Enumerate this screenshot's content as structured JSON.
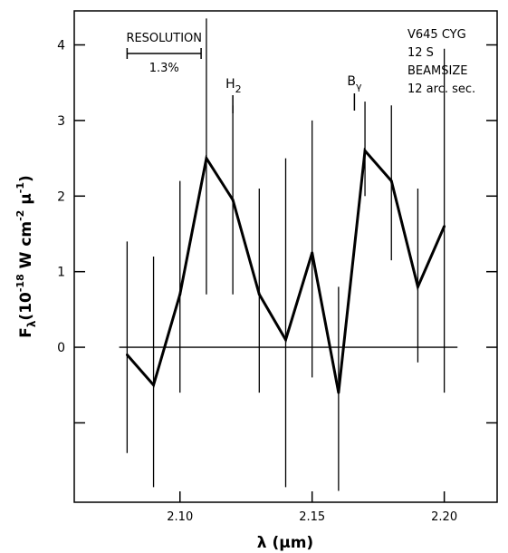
{
  "chart_data": {
    "type": "line",
    "title": "",
    "xlabel": "λ (μm)",
    "ylabel": "Fλ (10⁻¹⁸ W cm⁻² μ⁻¹)",
    "ylabel_parts": {
      "main": "F",
      "sub": "λ",
      "open": "(10",
      "exp1": "-18",
      "mid": " W cm",
      "exp2": "-2",
      "mu": " μ",
      "exp3": "-1",
      "close": ")"
    },
    "xlim": [
      2.06,
      2.22
    ],
    "ylim": [
      -2.05,
      4.45
    ],
    "x_ticks": [
      2.1,
      2.15,
      2.2
    ],
    "x_tick_labels": [
      "2.10",
      "2.15",
      "2.20"
    ],
    "y_ticks": [
      -1,
      0,
      1,
      2,
      3,
      4
    ],
    "y_tick_labels": [
      "",
      "0",
      "1",
      "2",
      "3",
      "4"
    ],
    "grid": false,
    "zero_line": true,
    "series": [
      {
        "x": [
          2.08,
          2.09,
          2.1,
          2.11,
          2.12,
          2.13,
          2.14,
          2.15,
          2.16,
          2.17,
          2.18,
          2.19,
          2.2
        ],
        "y": [
          -0.1,
          -0.5,
          0.7,
          2.5,
          1.95,
          0.7,
          0.1,
          1.25,
          -0.6,
          2.6,
          2.2,
          0.8,
          1.6
        ],
        "err_low": [
          -1.4,
          -1.85,
          -0.6,
          0.7,
          0.7,
          -0.6,
          -1.85,
          -0.4,
          -1.9,
          2.0,
          1.15,
          -0.2,
          -0.6
        ],
        "err_high": [
          1.4,
          1.2,
          2.2,
          4.35,
          3.2,
          2.1,
          2.5,
          3.0,
          0.8,
          3.25,
          3.2,
          2.1,
          3.95
        ]
      }
    ],
    "annotations": {
      "resolution": {
        "label": "RESOLUTION",
        "value": "1.3%",
        "x_start": 2.08,
        "x_end": 2.108,
        "y": 3.8
      },
      "h2": {
        "label": "H",
        "sub": "2",
        "x": 2.12
      },
      "brgamma": {
        "label": "B",
        "sub": "γ",
        "x": 2.166
      },
      "info_lines": [
        "V645 CYG",
        "12 S",
        "BEAMSIZE",
        "12 arc. sec."
      ]
    }
  }
}
